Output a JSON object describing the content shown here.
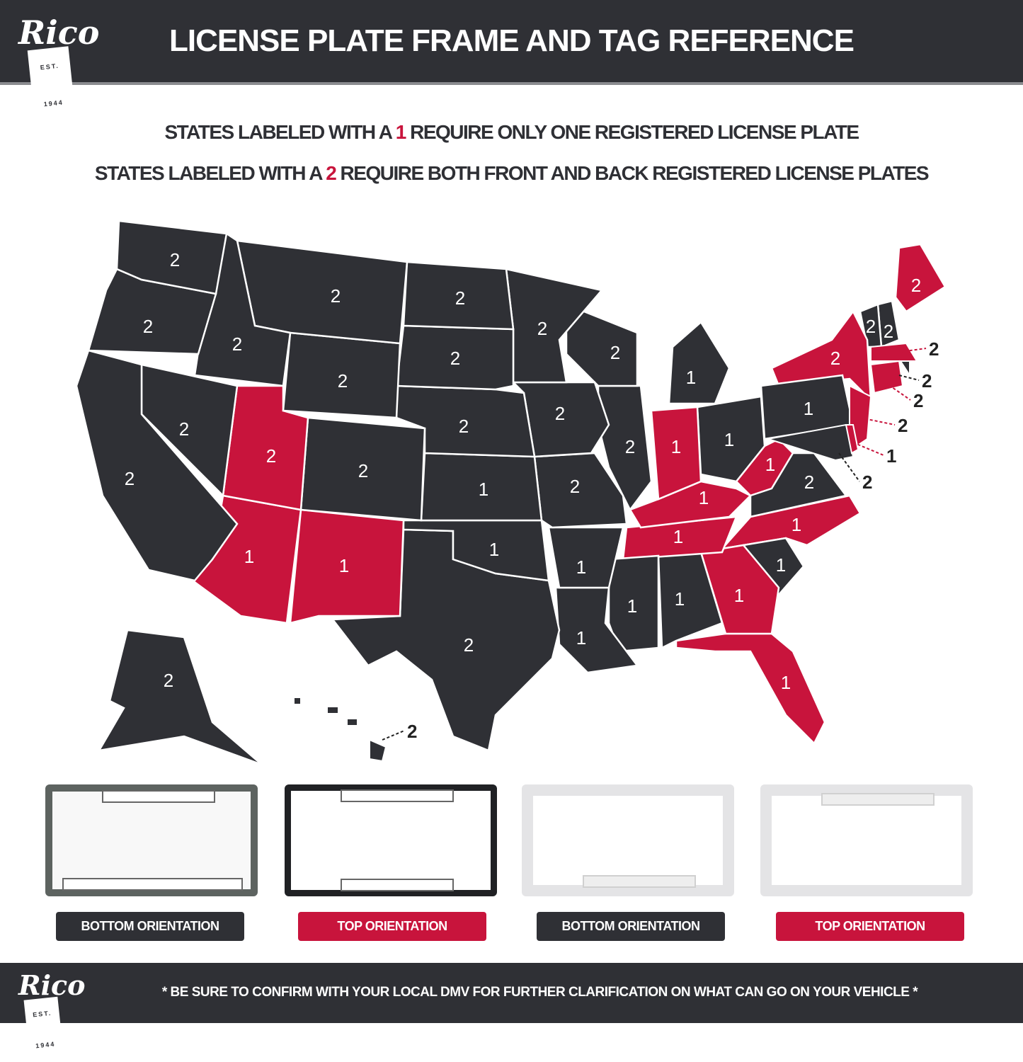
{
  "brand": {
    "logo_text": "Rico",
    "logo_est": "EST. 1944"
  },
  "header": {
    "title": "LICENSE PLATE FRAME AND TAG REFERENCE"
  },
  "legend": {
    "line1_pre": "STATES LABELED WITH A ",
    "line1_num": "1",
    "line1_post": " REQUIRE ONLY ONE REGISTERED LICENSE PLATE",
    "line2_pre": "STATES LABELED WITH A ",
    "line2_num": "2",
    "line2_post": " REQUIRE BOTH FRONT AND BACK REGISTERED LICENSE PLATES"
  },
  "colors": {
    "dark": "#2f3035",
    "red": "#c8143c",
    "border": "#ffffff"
  },
  "map": {
    "states": [
      {
        "label": "2",
        "highlight": false
      },
      {
        "label": "2",
        "highlight": false
      },
      {
        "label": "2",
        "highlight": false
      },
      {
        "label": "2",
        "highlight": false
      },
      {
        "label": "2",
        "highlight": false
      },
      {
        "label": "2",
        "highlight": false
      },
      {
        "label": "2",
        "highlight": false
      },
      {
        "label": "2",
        "highlight": true
      },
      {
        "label": "2",
        "highlight": false
      },
      {
        "label": "1",
        "highlight": true
      },
      {
        "label": "1",
        "highlight": true
      },
      {
        "label": "2",
        "highlight": false
      },
      {
        "label": "2",
        "highlight": false
      },
      {
        "label": "2",
        "highlight": false
      },
      {
        "label": "1",
        "highlight": false
      },
      {
        "label": "1",
        "highlight": false
      },
      {
        "label": "2",
        "highlight": false
      },
      {
        "label": "2",
        "highlight": false
      },
      {
        "label": "2",
        "highlight": false
      },
      {
        "label": "2",
        "highlight": false
      },
      {
        "label": "1",
        "highlight": false
      },
      {
        "label": "1",
        "highlight": false
      },
      {
        "label": "2",
        "highlight": false
      },
      {
        "label": "2",
        "highlight": false
      },
      {
        "label": "1",
        "highlight": false
      },
      {
        "label": "1",
        "highlight": true
      },
      {
        "label": "1",
        "highlight": false
      },
      {
        "label": "1",
        "highlight": true
      },
      {
        "label": "1",
        "highlight": true
      },
      {
        "label": "1",
        "highlight": false
      },
      {
        "label": "1",
        "highlight": false
      },
      {
        "label": "1",
        "highlight": true
      },
      {
        "label": "1",
        "highlight": true
      },
      {
        "label": "1",
        "highlight": false
      },
      {
        "label": "1",
        "highlight": true
      },
      {
        "label": "2",
        "highlight": false
      },
      {
        "label": "1",
        "highlight": true
      },
      {
        "label": "1",
        "highlight": false
      },
      {
        "label": "2",
        "highlight": true
      },
      {
        "label": "2",
        "highlight": false
      },
      {
        "label": "2",
        "highlight": false
      },
      {
        "label": "2",
        "highlight": true
      },
      {
        "label": "2",
        "highlight": false
      }
    ],
    "callouts": [
      {
        "label": "2",
        "highlight": true
      },
      {
        "label": "2",
        "highlight": false
      },
      {
        "label": "2",
        "highlight": true
      },
      {
        "label": "2",
        "highlight": true
      },
      {
        "label": "1",
        "highlight": true
      },
      {
        "label": "2",
        "highlight": false
      },
      {
        "label": "2",
        "highlight": false
      }
    ]
  },
  "frames": [
    {
      "label": "BOTTOM ORIENTATION",
      "button_color": "#2f3035"
    },
    {
      "label": "TOP ORIENTATION",
      "button_color": "#c8143c"
    },
    {
      "label": "BOTTOM ORIENTATION",
      "button_color": "#2f3035"
    },
    {
      "label": "TOP ORIENTATION",
      "button_color": "#c8143c"
    }
  ],
  "footer": {
    "note": "* BE SURE TO CONFIRM WITH YOUR LOCAL DMV FOR FURTHER CLARIFICATION ON WHAT CAN GO ON YOUR VEHICLE *"
  }
}
